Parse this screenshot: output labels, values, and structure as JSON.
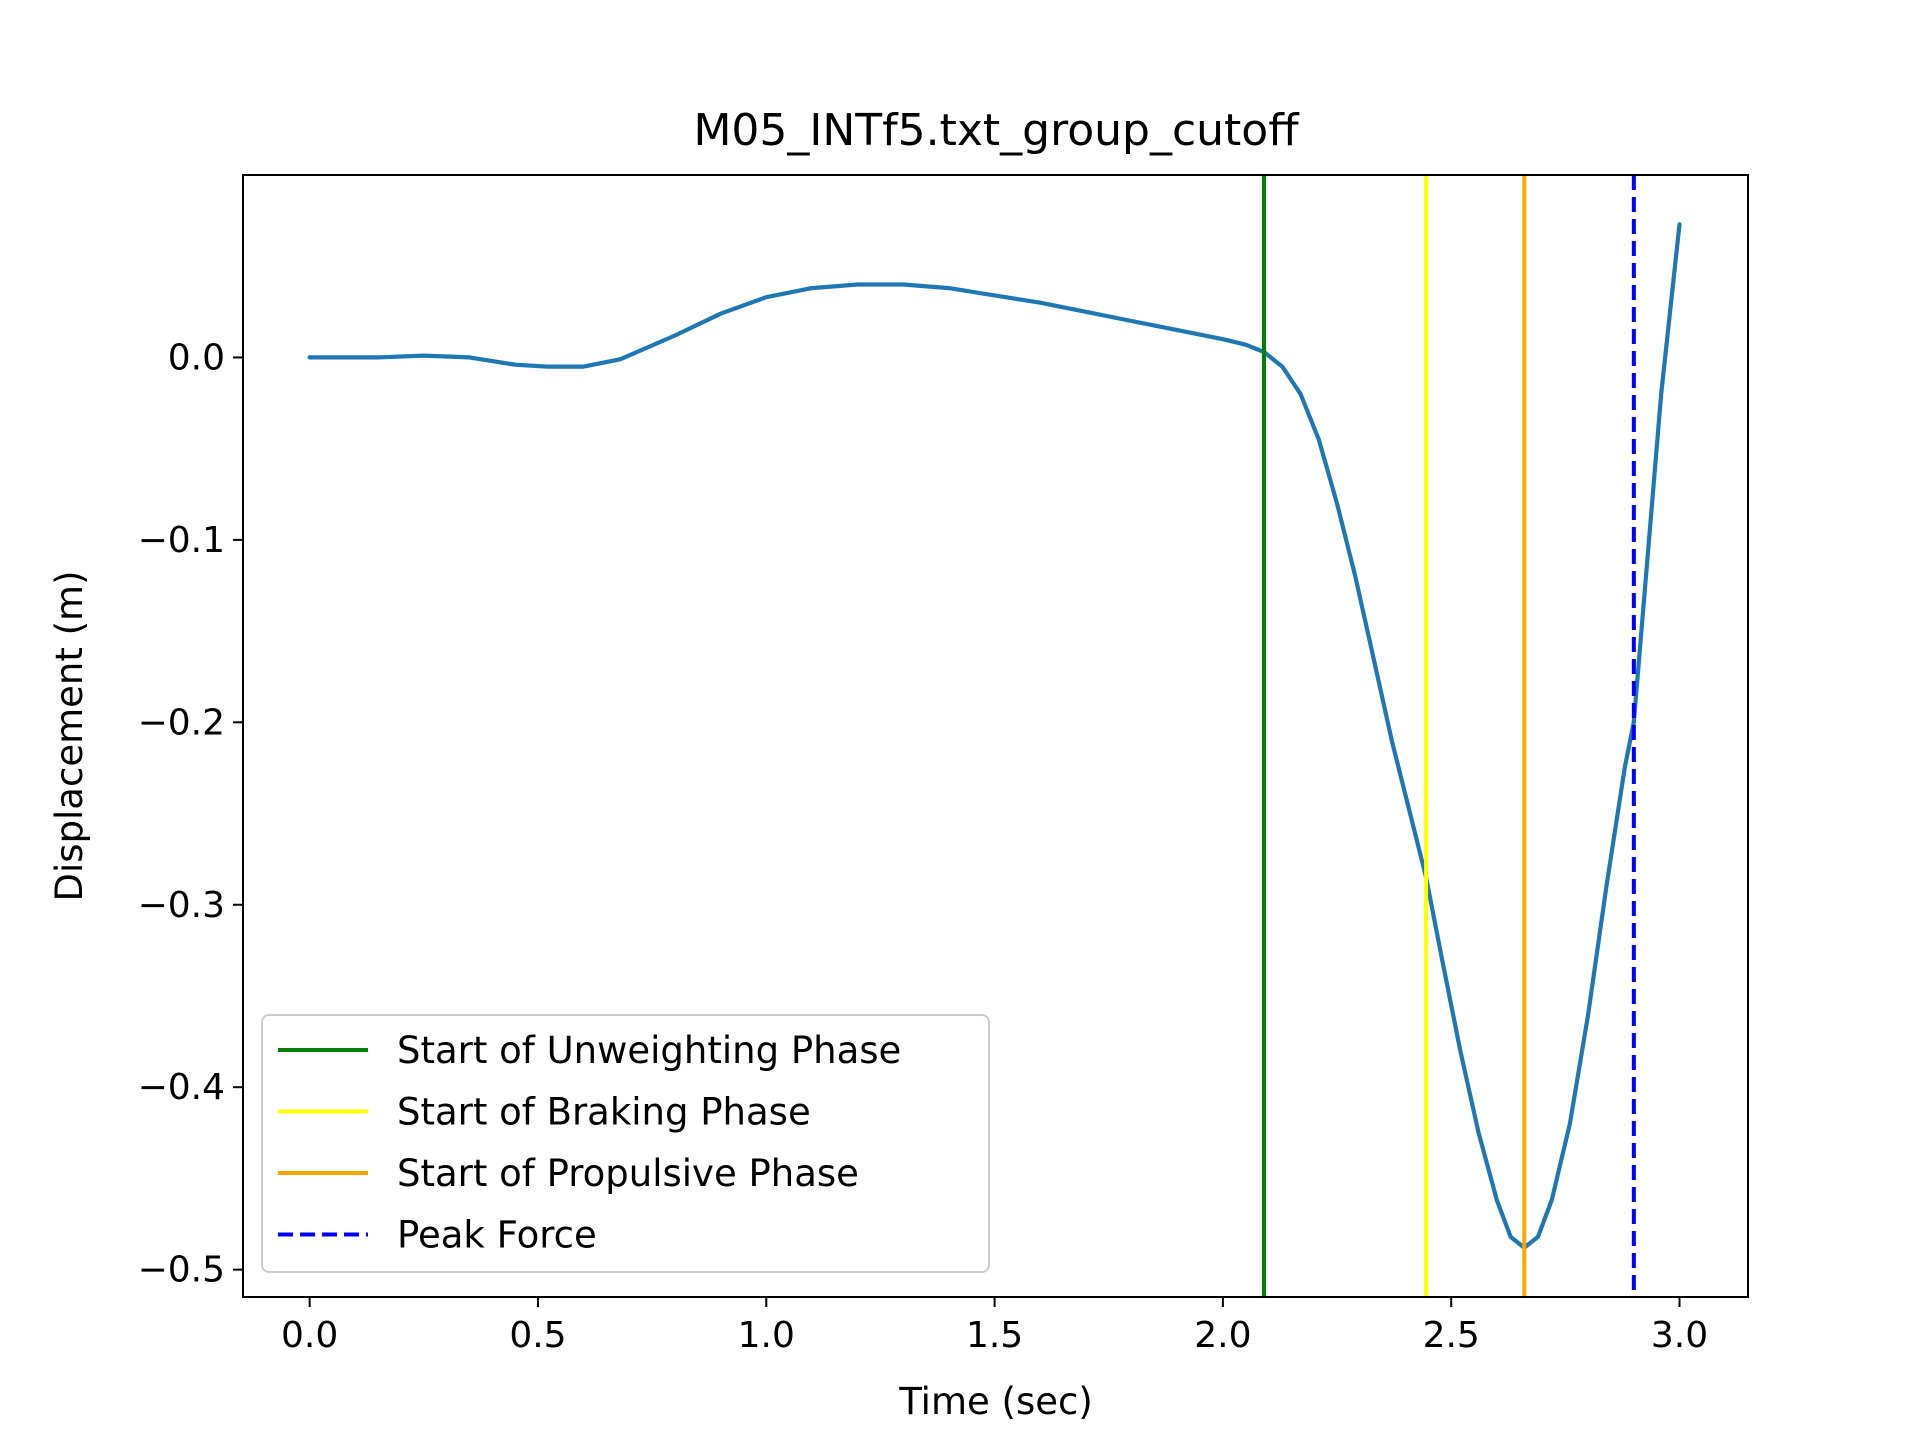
{
  "chart_data": {
    "type": "line",
    "title": "M05_INTf5.txt_group_cutoff",
    "xlabel": "Time (sec)",
    "ylabel": "Displacement (m)",
    "xlim": [
      -0.146,
      3.15
    ],
    "ylim": [
      -0.515,
      0.1
    ],
    "xticks": [
      {
        "value": 0.0,
        "label": "0.0"
      },
      {
        "value": 0.5,
        "label": "0.5"
      },
      {
        "value": 1.0,
        "label": "1.0"
      },
      {
        "value": 1.5,
        "label": "1.5"
      },
      {
        "value": 2.0,
        "label": "2.0"
      },
      {
        "value": 2.5,
        "label": "2.5"
      },
      {
        "value": 3.0,
        "label": "3.0"
      }
    ],
    "yticks": [
      {
        "value": 0.0,
        "label": "0.0"
      },
      {
        "value": -0.1,
        "label": "−0.1"
      },
      {
        "value": -0.2,
        "label": "−0.2"
      },
      {
        "value": -0.3,
        "label": "−0.3"
      },
      {
        "value": -0.4,
        "label": "−0.4"
      },
      {
        "value": -0.5,
        "label": "−0.5"
      }
    ],
    "grid": false,
    "legend_position": "lower-left",
    "series": [
      {
        "color": "#1f77b4",
        "x": [
          0.0,
          0.15,
          0.25,
          0.35,
          0.45,
          0.52,
          0.6,
          0.68,
          0.8,
          0.9,
          1.0,
          1.1,
          1.2,
          1.3,
          1.4,
          1.5,
          1.6,
          1.7,
          1.8,
          1.9,
          2.0,
          2.05,
          2.09,
          2.13,
          2.17,
          2.21,
          2.25,
          2.29,
          2.33,
          2.37,
          2.41,
          2.445,
          2.48,
          2.52,
          2.56,
          2.6,
          2.63,
          2.66,
          2.69,
          2.72,
          2.76,
          2.8,
          2.84,
          2.88,
          2.9,
          2.93,
          2.96,
          3.0
        ],
        "y": [
          0.0,
          0.0,
          0.001,
          0.0,
          -0.004,
          -0.005,
          -0.005,
          -0.001,
          0.012,
          0.024,
          0.033,
          0.038,
          0.04,
          0.04,
          0.038,
          0.034,
          0.03,
          0.025,
          0.02,
          0.015,
          0.01,
          0.007,
          0.003,
          -0.005,
          -0.02,
          -0.045,
          -0.08,
          -0.12,
          -0.165,
          -0.21,
          -0.25,
          -0.285,
          -0.33,
          -0.38,
          -0.425,
          -0.462,
          -0.482,
          -0.488,
          -0.482,
          -0.462,
          -0.42,
          -0.36,
          -0.29,
          -0.225,
          -0.2,
          -0.11,
          -0.02,
          0.073
        ]
      }
    ],
    "vlines": [
      {
        "name": "Start of Unweighting Phase",
        "x": 2.09,
        "color": "#008000",
        "style": "solid"
      },
      {
        "name": "Start of Braking Phase",
        "x": 2.445,
        "color": "#ffff00",
        "style": "solid"
      },
      {
        "name": "Start of Propulsive Phase",
        "x": 2.66,
        "color": "#ffa500",
        "style": "solid"
      },
      {
        "name": "Peak Force",
        "x": 2.9,
        "color": "#0000ff",
        "style": "dashed"
      }
    ]
  }
}
